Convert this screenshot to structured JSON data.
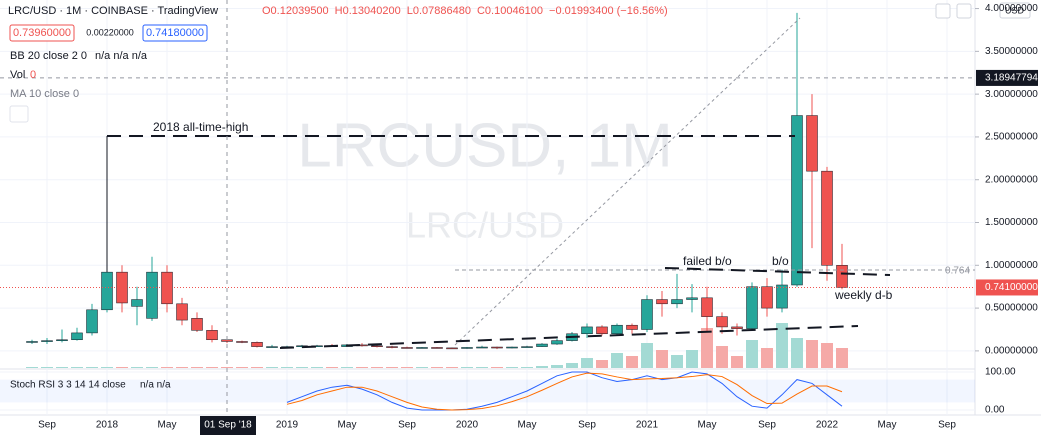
{
  "header": {
    "title": "LRC/USD · 1M · COINBASE · TradingView",
    "ohlc": [
      "O0.12039500",
      "H0.13040200",
      "L0.07886480",
      "C0.10046100",
      "−0.01993400 (−16.56%)"
    ],
    "sell": "0.73960000",
    "spread": "0.00220000",
    "buy": "0.74180000",
    "bb": "BB 20 close 2 0",
    "bb_values": "n/a n/a n/a",
    "vol": "Vol",
    "vol_value": "0",
    "ma": "MA 10 close 0",
    "stoch": "Stoch RSI 3 3 14 14 close",
    "stoch_values": "n/a n/a",
    "currency": "USD"
  },
  "watermark": {
    "symbol": "LRCUSD, 1M",
    "pair": "LRC/USD"
  },
  "annotations": {
    "ath": "2018 all-time-high",
    "failed": "failed b/o",
    "bo": "b/o",
    "db": "weekly d-b",
    "fib": "0.764"
  },
  "chart_data": {
    "type": "candlestick",
    "categories": [
      null,
      "Sep",
      null,
      null,
      null,
      "2018",
      null,
      null,
      null,
      "May",
      null,
      null,
      null,
      null,
      null,
      null,
      null,
      "2019",
      null,
      null,
      null,
      "May",
      null,
      null,
      null,
      "Sep",
      null,
      null,
      null,
      "2020",
      null,
      null,
      null,
      "May",
      null,
      null,
      null,
      "Sep",
      null,
      null,
      null,
      "2021",
      null,
      null,
      null,
      "May",
      null,
      null,
      null,
      "Sep",
      null,
      null,
      null,
      "2022",
      null,
      null,
      null,
      "May",
      null,
      null,
      null,
      "Sep",
      null
    ],
    "open": [
      0.1,
      0.11,
      0.12,
      0.13,
      0.21,
      0.48,
      0.92,
      0.52,
      0.38,
      0.92,
      0.55,
      0.38,
      0.24,
      0.13,
      0.11,
      0.1,
      0.05,
      0.05,
      0.05,
      0.06,
      0.06,
      0.05,
      0.07,
      0.06,
      0.05,
      0.04,
      0.035,
      0.04,
      0.035,
      0.03,
      0.04,
      0.045,
      0.035,
      0.045,
      0.05,
      0.08,
      0.12,
      0.2,
      0.28,
      0.2,
      0.3,
      0.25,
      0.6,
      0.55,
      0.6,
      0.62,
      0.4,
      0.28,
      0.26,
      0.75,
      0.5,
      0.77,
      2.75,
      2.1,
      1.0,
      null,
      null,
      null,
      null,
      null,
      null,
      null,
      null
    ],
    "high": [
      0.13,
      0.15,
      0.25,
      0.27,
      0.55,
      2.5,
      1.0,
      0.75,
      1.1,
      1.0,
      0.62,
      0.45,
      0.3,
      0.15,
      0.12,
      0.11,
      0.07,
      0.06,
      0.07,
      0.07,
      0.08,
      0.08,
      0.09,
      0.07,
      0.06,
      0.05,
      0.045,
      0.045,
      0.04,
      0.045,
      0.06,
      0.05,
      0.05,
      0.06,
      0.09,
      0.14,
      0.22,
      0.32,
      0.3,
      0.32,
      0.32,
      0.65,
      0.7,
      0.9,
      0.78,
      0.75,
      0.45,
      0.32,
      0.8,
      0.85,
      0.95,
      3.95,
      3.0,
      2.15,
      1.25,
      null,
      null,
      null,
      null,
      null,
      null,
      null,
      null
    ],
    "low": [
      0.08,
      0.08,
      0.1,
      0.12,
      0.18,
      0.45,
      0.45,
      0.3,
      0.35,
      0.45,
      0.3,
      0.22,
      0.1,
      0.09,
      0.09,
      0.04,
      0.04,
      0.04,
      0.04,
      0.05,
      0.05,
      0.05,
      0.05,
      0.04,
      0.03,
      0.03,
      0.03,
      0.03,
      0.025,
      0.025,
      0.035,
      0.02,
      0.03,
      0.04,
      0.045,
      0.07,
      0.11,
      0.15,
      0.18,
      0.18,
      0.2,
      0.22,
      0.4,
      0.5,
      0.45,
      0.22,
      0.2,
      0.18,
      0.25,
      0.4,
      0.45,
      0.75,
      1.2,
      0.82,
      0.72,
      null,
      null,
      null,
      null,
      null,
      null,
      null,
      null
    ],
    "close": [
      0.11,
      0.12,
      0.13,
      0.21,
      0.48,
      0.92,
      0.56,
      0.6,
      0.92,
      0.55,
      0.36,
      0.24,
      0.13,
      0.11,
      0.1,
      0.05,
      0.05,
      0.05,
      0.06,
      0.06,
      0.05,
      0.07,
      0.06,
      0.05,
      0.04,
      0.035,
      0.04,
      0.035,
      0.03,
      0.04,
      0.045,
      0.035,
      0.045,
      0.05,
      0.08,
      0.12,
      0.2,
      0.28,
      0.2,
      0.3,
      0.25,
      0.6,
      0.55,
      0.6,
      0.62,
      0.4,
      0.28,
      0.26,
      0.75,
      0.5,
      0.77,
      2.75,
      2.1,
      1.0,
      0.741,
      null,
      null,
      null,
      null,
      null,
      null,
      null,
      null
    ],
    "volume": [
      1,
      1,
      1,
      1,
      1,
      1,
      1,
      1,
      1,
      1,
      1,
      1,
      1,
      1,
      1,
      1,
      1,
      1,
      1,
      1,
      1,
      1,
      1,
      1,
      1,
      1,
      1,
      1,
      1,
      1,
      1,
      1,
      1,
      1,
      2,
      3,
      5,
      10,
      8,
      15,
      12,
      25,
      18,
      13,
      18,
      40,
      22,
      12,
      28,
      20,
      45,
      30,
      28,
      25,
      20,
      null,
      null,
      null,
      null,
      null,
      null,
      null,
      null
    ],
    "up_color": "#26a69a",
    "down_color": "#ef5350",
    "volume_up_color": "#a3dad4",
    "volume_down_color": "#f5a9a7",
    "ylim": [
      -0.2,
      4.1
    ],
    "yticks": [
      {
        "value": 0,
        "label": "0.00000000"
      },
      {
        "value": 0.5,
        "label": "0.50000000"
      },
      {
        "value": 1,
        "label": "1.00000000"
      },
      {
        "value": 1.5,
        "label": "1.50000000"
      },
      {
        "value": 2,
        "label": "2.00000000"
      },
      {
        "value": 2.5,
        "label": "2.50000000"
      },
      {
        "value": 3,
        "label": "3.00000000"
      },
      {
        "value": 3.5,
        "label": "3.50000000"
      },
      {
        "value": 4,
        "label": "4.00000000"
      }
    ],
    "last_price": {
      "value": 0.741,
      "label": "0.74100000"
    },
    "crosshair": {
      "y": 3.18947794,
      "x_label": "01 Sep '18"
    },
    "stoch": {
      "ylim": [
        0,
        100
      ],
      "yticks": [
        {
          "value": 100,
          "label": "100.00"
        },
        {
          "value": 0,
          "label": "0.00"
        }
      ],
      "series": [
        {
          "name": "K",
          "color": "#2962ff",
          "values": [
            null,
            null,
            null,
            null,
            null,
            null,
            null,
            null,
            null,
            null,
            null,
            null,
            null,
            null,
            null,
            null,
            null,
            20,
            35,
            50,
            60,
            65,
            55,
            40,
            20,
            5,
            0,
            0,
            0,
            2,
            10,
            20,
            35,
            50,
            70,
            90,
            100,
            100,
            85,
            75,
            80,
            90,
            80,
            85,
            100,
            95,
            70,
            35,
            10,
            5,
            40,
            80,
            70,
            40,
            10,
            null,
            null,
            null,
            null,
            null,
            null,
            null,
            null
          ]
        },
        {
          "name": "D",
          "color": "#ff6d00",
          "values": [
            null,
            null,
            null,
            null,
            null,
            null,
            null,
            null,
            null,
            null,
            null,
            null,
            null,
            null,
            null,
            null,
            null,
            15,
            25,
            40,
            50,
            60,
            60,
            50,
            35,
            20,
            8,
            2,
            0,
            1,
            4,
            11,
            22,
            35,
            52,
            70,
            87,
            97,
            95,
            87,
            80,
            82,
            83,
            85,
            88,
            93,
            88,
            67,
            38,
            17,
            18,
            42,
            63,
            63,
            48,
            null,
            null,
            null,
            null,
            null,
            null,
            null,
            null
          ]
        }
      ]
    }
  }
}
